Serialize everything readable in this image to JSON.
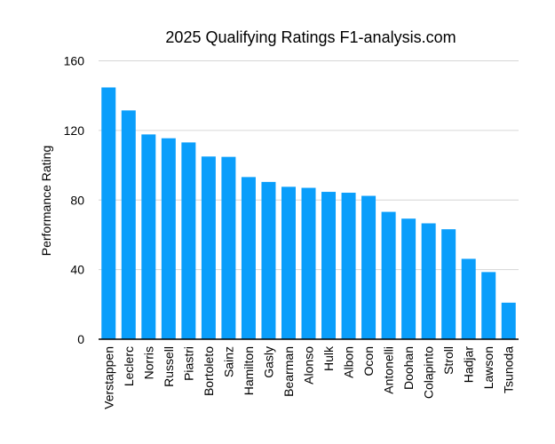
{
  "chart_data": {
    "type": "bar",
    "title": "2025 Qualifying Ratings F1-analysis.com",
    "xlabel": "",
    "ylabel": "Performance Rating",
    "ylim": [
      0,
      160
    ],
    "yticks": [
      0,
      40,
      80,
      120,
      160
    ],
    "grid": true,
    "bar_color": "#0A9EFB",
    "categories": [
      "Verstappen",
      "Leclerc",
      "Norris",
      "Russell",
      "Piastri",
      "Bortoleto",
      "Sainz",
      "Hamilton",
      "Gasly",
      "Bearman",
      "Alonso",
      "Hulk",
      "Albon",
      "Ocon",
      "Antonelli",
      "Doohan",
      "Colapinto",
      "Stroll",
      "Hadjar",
      "Lawson",
      "Tsunoda"
    ],
    "values": [
      144.7,
      131.5,
      117.7,
      115.5,
      113.1,
      105.0,
      104.8,
      93.2,
      90.4,
      87.6,
      87.0,
      84.7,
      84.2,
      82.4,
      73.2,
      69.3,
      66.6,
      63.2,
      46.2,
      38.6,
      21.0
    ]
  }
}
